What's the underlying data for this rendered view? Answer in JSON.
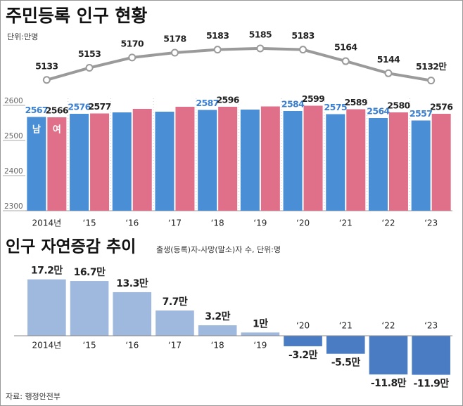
{
  "chart_data": [
    {
      "type": "line",
      "title": "주민등록 인구 현황",
      "subtitle": "단위:만명",
      "categories": [
        "2014년",
        "‘15",
        "‘16",
        "‘17",
        "‘18",
        "‘19",
        "‘20",
        "‘21",
        "‘22",
        "‘23"
      ],
      "values": [
        5133,
        5153,
        5170,
        5178,
        5183,
        5185,
        5183,
        5164,
        5144,
        5132
      ],
      "value_labels": [
        "5133",
        "5153",
        "5170",
        "5178",
        "5183",
        "5185",
        "5183",
        "5164",
        "5144",
        "5132만"
      ],
      "color": "#9a9a9a",
      "ylim": [
        5120,
        5200
      ]
    },
    {
      "type": "grouped-bar",
      "categories": [
        "2014년",
        "‘15",
        "‘16",
        "‘17",
        "‘18",
        "‘19",
        "‘20",
        "‘21",
        "‘22",
        "‘23"
      ],
      "series": [
        {
          "name": "남",
          "color": "#4a8fd6",
          "label_color": "#3a7fd0",
          "values": [
            2567,
            2576,
            2580,
            2582,
            2587,
            2588,
            2584,
            2575,
            2564,
            2557
          ],
          "value_labels": [
            "2567",
            "2576",
            null,
            null,
            "2587",
            null,
            "2584",
            "2575",
            "2564",
            "2557"
          ]
        },
        {
          "name": "여",
          "color": "#e0708a",
          "label_color": "#222222",
          "values": [
            2566,
            2577,
            2590,
            2596,
            2596,
            2597,
            2599,
            2589,
            2580,
            2576
          ],
          "value_labels": [
            "2566",
            "2577",
            null,
            null,
            "2596",
            null,
            "2599",
            "2589",
            "2580",
            "2576"
          ]
        }
      ],
      "ylim": [
        2300,
        2630
      ],
      "yticks": [
        2300,
        2400,
        2500,
        2600
      ]
    },
    {
      "type": "bar",
      "title": "인구 자연증감 추이",
      "subtitle": "출생(등록)자-사망(말소)자 수, 단위:명",
      "categories": [
        "2014년",
        "‘15",
        "‘16",
        "‘17",
        "‘18",
        "‘19",
        "‘20",
        "‘21",
        "‘22",
        "‘23"
      ],
      "values": [
        17.2,
        16.7,
        13.3,
        7.7,
        3.2,
        1,
        -3.2,
        -5.5,
        -11.8,
        -11.9
      ],
      "value_labels": [
        "17.2만",
        "16.7만",
        "13.3만",
        "7.7만",
        "3.2만",
        "1만",
        "-3.2만",
        "-5.5만",
        "-11.8만",
        "-11.9만"
      ],
      "color": "#9fb8dd",
      "negative_color": "#4a7cc4",
      "ylim": [
        -13,
        18
      ]
    }
  ],
  "source": "자료: 행정안전부"
}
